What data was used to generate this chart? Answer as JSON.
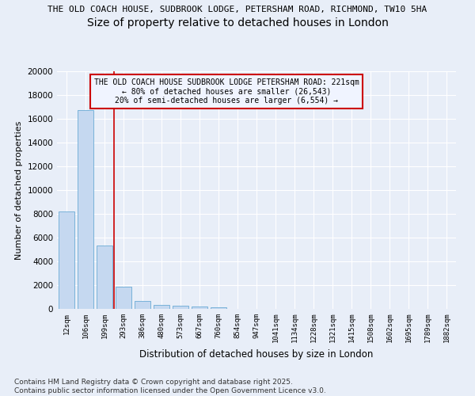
{
  "title_line1": "THE OLD COACH HOUSE, SUDBROOK LODGE, PETERSHAM ROAD, RICHMOND, TW10 5HA",
  "title_line2": "Size of property relative to detached houses in London",
  "xlabel": "Distribution of detached houses by size in London",
  "ylabel": "Number of detached properties",
  "categories": [
    "12sqm",
    "106sqm",
    "199sqm",
    "293sqm",
    "386sqm",
    "480sqm",
    "573sqm",
    "667sqm",
    "760sqm",
    "854sqm",
    "947sqm",
    "1041sqm",
    "1134sqm",
    "1228sqm",
    "1321sqm",
    "1415sqm",
    "1508sqm",
    "1602sqm",
    "1695sqm",
    "1789sqm",
    "1882sqm"
  ],
  "values": [
    8200,
    16700,
    5350,
    1850,
    680,
    340,
    250,
    170,
    130,
    0,
    0,
    0,
    0,
    0,
    0,
    0,
    0,
    0,
    0,
    0,
    0
  ],
  "bar_color": "#c5d8f0",
  "bar_edge_color": "#6aaad4",
  "vline_color": "#cc0000",
  "vline_x": 2.5,
  "annotation_title": "THE OLD COACH HOUSE SUDBROOK LODGE PETERSHAM ROAD: 221sqm",
  "annotation_line2": "← 80% of detached houses are smaller (26,543)",
  "annotation_line3": "20% of semi-detached houses are larger (6,554) →",
  "annotation_box_color": "#cc0000",
  "annotation_bg": "#f0f4ff",
  "ylim": [
    0,
    20000
  ],
  "yticks": [
    0,
    2000,
    4000,
    6000,
    8000,
    10000,
    12000,
    14000,
    16000,
    18000,
    20000
  ],
  "footnote": "Contains HM Land Registry data © Crown copyright and database right 2025.\nContains public sector information licensed under the Open Government Licence v3.0.",
  "bg_color": "#e8eef8",
  "grid_color": "#ffffff",
  "title_fontsize": 8,
  "subtitle_fontsize": 10,
  "footnote_fontsize": 6.5
}
